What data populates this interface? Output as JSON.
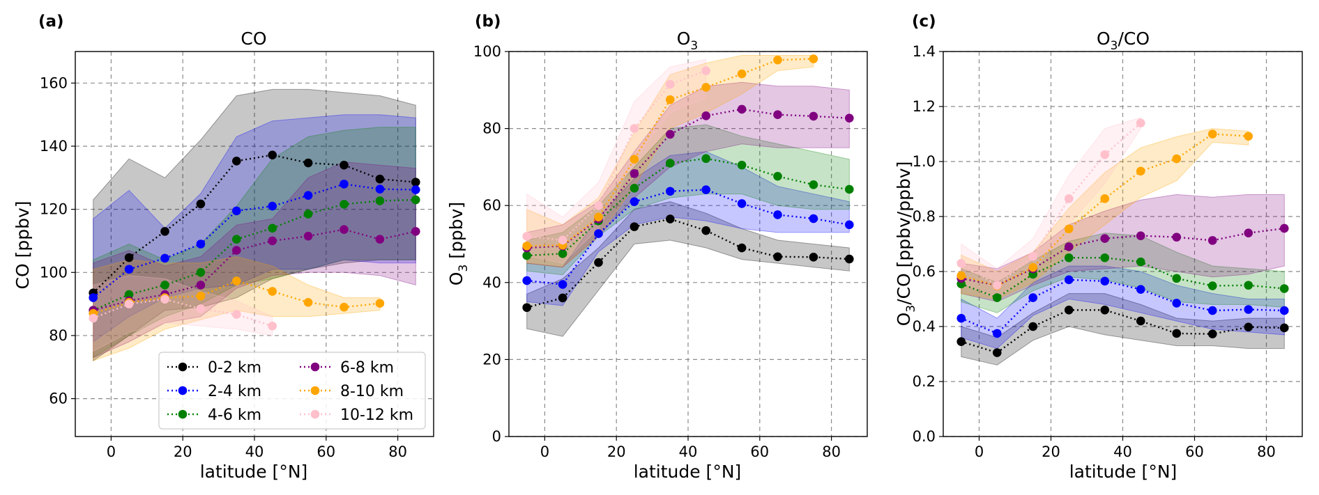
{
  "colors": {
    "0-2 km": "#000000",
    "2-4 km": "#0000ff",
    "4-6 km": "#008000",
    "6-8 km": "#800080",
    "8-10 km": "#ffa500",
    "10-12 km": "#ffc0cb"
  },
  "chart_data": [
    {
      "type": "line",
      "panel_label": "(a)",
      "title": "CO",
      "title_sub": "",
      "xlabel": "latitude [°N]",
      "ylabel": "CO [ppbv]",
      "ylabel_sub": "",
      "ylabel_rest": "",
      "xlim": [
        -10,
        90
      ],
      "ylim": [
        48,
        170
      ],
      "xticks": [
        0,
        20,
        40,
        60,
        80
      ],
      "yticks": [
        60,
        80,
        100,
        120,
        140,
        160
      ],
      "ytick_labels": [
        "60",
        "80",
        "100",
        "120",
        "140",
        "160"
      ],
      "grid": true,
      "legend": {
        "position": "lower-right",
        "entries": [
          "0-2 km",
          "6-8 km",
          "2-4 km",
          "8-10 km",
          "4-6 km",
          "10-12 km"
        ]
      },
      "series": [
        {
          "name": "0-2 km",
          "x": [
            -5,
            5,
            15,
            25,
            35,
            45,
            55,
            65,
            75,
            85
          ],
          "values": [
            93.5,
            104.7,
            113,
            121.7,
            135.3,
            137.2,
            134.7,
            134,
            129.6,
            128.6
          ],
          "upper": [
            123,
            136,
            130,
            142,
            156,
            158,
            158,
            157,
            156,
            153
          ],
          "lower": [
            72,
            80,
            88,
            89,
            92,
            98,
            101,
            103,
            104,
            104
          ]
        },
        {
          "name": "2-4 km",
          "x": [
            -5,
            5,
            15,
            25,
            35,
            45,
            55,
            65,
            75,
            85
          ],
          "values": [
            92,
            101,
            104.5,
            109,
            119.5,
            121,
            124.4,
            128,
            126.4,
            126.2
          ],
          "upper": [
            117,
            126,
            114,
            125,
            143,
            148,
            149,
            150,
            150,
            149
          ],
          "lower": [
            78,
            86,
            92,
            95,
            96,
            101,
            101,
            104,
            103,
            103
          ]
        },
        {
          "name": "4-6 km",
          "x": [
            -5,
            5,
            15,
            25,
            35,
            45,
            55,
            65,
            75,
            85
          ],
          "values": [
            88,
            93,
            96,
            100,
            110.5,
            114,
            118.5,
            121.6,
            122.7,
            123
          ],
          "upper": [
            104,
            109,
            104,
            109,
            121,
            136,
            143,
            145,
            146,
            146
          ],
          "lower": [
            73,
            80,
            86,
            90,
            96,
            98,
            101,
            104,
            104,
            104
          ]
        },
        {
          "name": "6-8 km",
          "x": [
            -5,
            5,
            15,
            25,
            35,
            45,
            55,
            65,
            75,
            85
          ],
          "values": [
            88,
            91,
            93,
            96,
            107,
            110,
            111.5,
            113.6,
            110.5,
            113
          ],
          "upper": [
            103,
            107,
            102,
            105,
            115,
            117,
            130,
            135,
            134,
            133
          ],
          "lower": [
            73,
            78,
            84,
            86,
            95,
            99,
            100,
            100,
            99,
            96
          ]
        },
        {
          "name": "8-10 km",
          "x": [
            -5,
            5,
            15,
            25,
            35,
            45,
            55,
            65,
            75
          ],
          "values": [
            87,
            90.5,
            92,
            92.5,
            97.3,
            94,
            90.5,
            89,
            90.2
          ],
          "upper": [
            101,
            104,
            103,
            103,
            105,
            102,
            96,
            92,
            92
          ],
          "lower": [
            72,
            76,
            82,
            85,
            88,
            86,
            86,
            87,
            88
          ]
        },
        {
          "name": "10-12 km",
          "x": [
            -5,
            5,
            15,
            25,
            35,
            45
          ],
          "values": [
            85.5,
            90,
            91.5,
            88.5,
            86.7,
            83
          ],
          "upper": [
            96,
            99,
            98,
            94,
            91,
            86
          ],
          "lower": [
            75,
            81,
            84,
            83,
            82,
            80
          ]
        }
      ]
    },
    {
      "type": "line",
      "panel_label": "(b)",
      "title": "O",
      "title_sub": "3",
      "xlabel": "latitude [°N]",
      "ylabel": "O",
      "ylabel_sub": "3",
      "ylabel_rest": " [ppbv]",
      "xlim": [
        -10,
        90
      ],
      "ylim": [
        0,
        100
      ],
      "xticks": [
        0,
        20,
        40,
        60,
        80
      ],
      "yticks": [
        0,
        20,
        40,
        60,
        80,
        100
      ],
      "ytick_labels": [
        "0",
        "20",
        "40",
        "60",
        "80",
        "100"
      ],
      "grid": true,
      "series": [
        {
          "name": "0-2 km",
          "x": [
            -5,
            5,
            15,
            25,
            35,
            45,
            55,
            65,
            75,
            85
          ],
          "values": [
            33.5,
            36,
            45.2,
            54.5,
            56.5,
            53.5,
            49,
            46.7,
            46.6,
            46.1
          ],
          "upper": [
            37,
            41,
            49,
            59,
            61,
            58,
            54,
            51,
            50,
            49
          ],
          "lower": [
            28,
            26,
            38,
            50,
            51,
            49,
            46,
            45,
            44,
            43
          ]
        },
        {
          "name": "2-4 km",
          "x": [
            -5,
            5,
            15,
            25,
            35,
            45,
            55,
            65,
            75,
            85
          ],
          "values": [
            40.5,
            39.5,
            52.7,
            61,
            63.7,
            64.1,
            60.5,
            57.6,
            56.6,
            55
          ],
          "upper": [
            45,
            44,
            57,
            67,
            73,
            74,
            70,
            65,
            63,
            61
          ],
          "lower": [
            35,
            34,
            48,
            55,
            57,
            56,
            54,
            53,
            53,
            53
          ]
        },
        {
          "name": "4-6 km",
          "x": [
            -5,
            5,
            15,
            25,
            35,
            45,
            55,
            65,
            75,
            85
          ],
          "values": [
            47,
            47.5,
            56,
            64.5,
            71,
            72.2,
            70.5,
            67.6,
            65.4,
            64.2
          ],
          "upper": [
            51,
            53,
            60,
            70,
            80,
            81,
            78,
            76,
            74,
            72
          ],
          "lower": [
            43,
            42,
            52,
            59,
            62,
            63,
            63,
            60,
            59,
            59
          ]
        },
        {
          "name": "6-8 km",
          "x": [
            -5,
            5,
            15,
            25,
            35,
            45,
            55,
            65,
            75,
            85
          ],
          "values": [
            49,
            49.5,
            56.5,
            68.3,
            78.5,
            83.3,
            85,
            83.6,
            83.2,
            82.7
          ],
          "upper": [
            53,
            55,
            61,
            74,
            86,
            91,
            92,
            91,
            91,
            90
          ],
          "lower": [
            45,
            44,
            52,
            62,
            70,
            74,
            76,
            75,
            75,
            75
          ]
        },
        {
          "name": "8-10 km",
          "x": [
            -5,
            5,
            15,
            25,
            35,
            45,
            55,
            65,
            75
          ],
          "values": [
            49.5,
            49.7,
            57,
            72,
            87.5,
            90.7,
            94.2,
            97.8,
            98.1
          ],
          "upper": [
            59,
            55,
            62,
            79,
            94,
            97,
            99,
            99,
            99
          ],
          "lower": [
            45,
            44,
            52,
            65,
            80,
            84,
            89,
            95,
            96
          ]
        },
        {
          "name": "10-12 km",
          "x": [
            -5,
            5,
            15,
            25,
            35,
            45
          ],
          "values": [
            52,
            51,
            60,
            80,
            91.5,
            95
          ],
          "upper": [
            63,
            57,
            66,
            87,
            96,
            98
          ],
          "lower": [
            47,
            45,
            54,
            72,
            84,
            88
          ]
        }
      ]
    },
    {
      "type": "line",
      "panel_label": "(c)",
      "title": "O",
      "title_sub": "3",
      "title_rest": "/CO",
      "xlabel": "latitude [°N]",
      "ylabel": "O",
      "ylabel_sub": "3",
      "ylabel_rest": "/CO [ppbv/ppbv]",
      "xlim": [
        -10,
        90
      ],
      "ylim": [
        0,
        1.4
      ],
      "xticks": [
        0,
        20,
        40,
        60,
        80
      ],
      "yticks": [
        0,
        0.2,
        0.4,
        0.6,
        0.8,
        1.0,
        1.2,
        1.4
      ],
      "ytick_labels": [
        "0.0",
        "0.2",
        "0.4",
        "0.6",
        "0.8",
        "1.0",
        "1.2",
        "1.4"
      ],
      "grid": true,
      "series": [
        {
          "name": "0-2 km",
          "x": [
            -5,
            5,
            15,
            25,
            35,
            45,
            55,
            65,
            75,
            85
          ],
          "values": [
            0.345,
            0.305,
            0.4,
            0.46,
            0.46,
            0.42,
            0.375,
            0.373,
            0.398,
            0.395
          ],
          "upper": [
            0.4,
            0.36,
            0.45,
            0.52,
            0.52,
            0.48,
            0.43,
            0.42,
            0.43,
            0.43
          ],
          "lower": [
            0.29,
            0.26,
            0.35,
            0.4,
            0.37,
            0.35,
            0.33,
            0.33,
            0.32,
            0.32
          ]
        },
        {
          "name": "2-4 km",
          "x": [
            -5,
            5,
            15,
            25,
            35,
            45,
            55,
            65,
            75,
            85
          ],
          "values": [
            0.43,
            0.375,
            0.505,
            0.57,
            0.565,
            0.535,
            0.485,
            0.458,
            0.462,
            0.458
          ],
          "upper": [
            0.5,
            0.43,
            0.56,
            0.62,
            0.62,
            0.6,
            0.55,
            0.52,
            0.5,
            0.5
          ],
          "lower": [
            0.36,
            0.32,
            0.44,
            0.5,
            0.48,
            0.45,
            0.42,
            0.39,
            0.38,
            0.37
          ]
        },
        {
          "name": "4-6 km",
          "x": [
            -5,
            5,
            15,
            25,
            35,
            45,
            55,
            65,
            75,
            85
          ],
          "values": [
            0.555,
            0.505,
            0.59,
            0.65,
            0.65,
            0.635,
            0.575,
            0.548,
            0.55,
            0.538
          ],
          "upper": [
            0.61,
            0.56,
            0.64,
            0.71,
            0.74,
            0.73,
            0.67,
            0.62,
            0.61,
            0.6
          ],
          "lower": [
            0.49,
            0.45,
            0.53,
            0.58,
            0.57,
            0.54,
            0.49,
            0.48,
            0.48,
            0.47
          ]
        },
        {
          "name": "6-8 km",
          "x": [
            -5,
            5,
            15,
            25,
            35,
            45,
            55,
            65,
            75,
            85
          ],
          "values": [
            0.575,
            0.55,
            0.61,
            0.69,
            0.72,
            0.73,
            0.725,
            0.713,
            0.74,
            0.757
          ],
          "upper": [
            0.63,
            0.61,
            0.67,
            0.77,
            0.82,
            0.86,
            0.88,
            0.87,
            0.88,
            0.88
          ],
          "lower": [
            0.52,
            0.49,
            0.55,
            0.6,
            0.61,
            0.62,
            0.6,
            0.58,
            0.59,
            0.62
          ]
        },
        {
          "name": "8-10 km",
          "x": [
            -5,
            5,
            15,
            25,
            35,
            45,
            55,
            65,
            75
          ],
          "values": [
            0.585,
            0.548,
            0.615,
            0.755,
            0.865,
            0.965,
            1.01,
            1.1,
            1.092
          ],
          "upper": [
            0.66,
            0.6,
            0.67,
            0.83,
            0.96,
            1.05,
            1.09,
            1.12,
            1.11
          ],
          "lower": [
            0.52,
            0.5,
            0.56,
            0.67,
            0.77,
            0.87,
            0.93,
            1.07,
            1.06
          ]
        },
        {
          "name": "10-12 km",
          "x": [
            -5,
            5,
            15,
            25,
            35,
            45
          ],
          "values": [
            0.63,
            0.55,
            0.655,
            0.865,
            1.025,
            1.14
          ],
          "upper": [
            0.7,
            0.61,
            0.72,
            0.95,
            1.12,
            1.16
          ],
          "lower": [
            0.56,
            0.5,
            0.6,
            0.77,
            0.92,
            1.12
          ]
        }
      ]
    }
  ]
}
